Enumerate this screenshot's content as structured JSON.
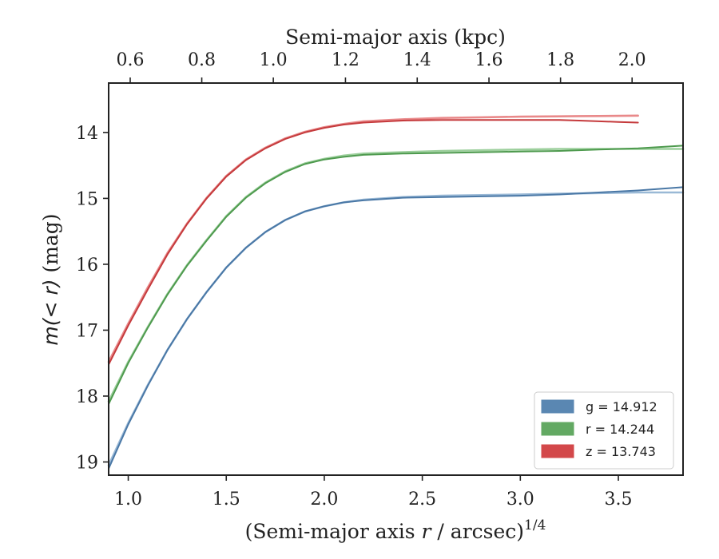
{
  "chart_data": {
    "type": "line",
    "title": "",
    "xlabel": "(Semi-major axis r / arcsec)",
    "xlabel_parts": {
      "prefix": "(Semi-major axis ",
      "variable": "r",
      "suffix": " / arcsec)",
      "exponent": "1/4"
    },
    "ylabel": "m(< r) (mag)",
    "ylabel_parts": {
      "math": "m(< r)",
      "unit": " (mag)"
    },
    "top_xlabel": "Semi-major axis (kpc)",
    "xlim": [
      0.9,
      3.83
    ],
    "ylim": [
      19.2,
      13.25
    ],
    "y_inverted": true,
    "grid": false,
    "x_ticks": [
      1.0,
      1.5,
      2.0,
      2.5,
      3.0,
      3.5
    ],
    "x_tick_labels": [
      "1.0",
      "1.5",
      "2.0",
      "2.5",
      "3.0",
      "3.5"
    ],
    "y_ticks": [
      14,
      15,
      16,
      17,
      18,
      19
    ],
    "y_tick_labels": [
      "14",
      "15",
      "16",
      "17",
      "18",
      "19"
    ],
    "top_ticks": [
      {
        "label": "0.6",
        "x": 1.01
      },
      {
        "label": "0.8",
        "x": 1.375
      },
      {
        "label": "1.0",
        "x": 1.74
      },
      {
        "label": "1.2",
        "x": 2.108
      },
      {
        "label": "1.4",
        "x": 2.474
      },
      {
        "label": "1.6",
        "x": 2.84
      },
      {
        "label": "1.8",
        "x": 3.205
      },
      {
        "label": "2.0",
        "x": 3.57
      }
    ],
    "legend": {
      "position": "lower-right",
      "entries": [
        {
          "label": "g = 14.912",
          "color": "#5a87b2"
        },
        {
          "label": "r = 14.244",
          "color": "#63a963"
        },
        {
          "label": "z = 13.743",
          "color": "#d3484a"
        }
      ]
    },
    "series": [
      {
        "name": "g",
        "color": "#4a78a6",
        "model_color": "#9ab9d6",
        "x": [
          0.9,
          1.0,
          1.1,
          1.2,
          1.3,
          1.4,
          1.5,
          1.6,
          1.7,
          1.8,
          1.9,
          2.0,
          2.1,
          2.2,
          2.4,
          2.6,
          2.8,
          3.0,
          3.2,
          3.4,
          3.6,
          3.83
        ],
        "y": [
          19.1,
          18.43,
          17.84,
          17.3,
          16.83,
          16.42,
          16.05,
          15.75,
          15.51,
          15.33,
          15.2,
          15.12,
          15.06,
          15.03,
          14.99,
          14.98,
          14.97,
          14.96,
          14.94,
          14.91,
          14.88,
          14.83
        ],
        "model_y": [
          19.05,
          18.41,
          17.83,
          17.3,
          16.83,
          16.42,
          16.05,
          15.75,
          15.51,
          15.33,
          15.2,
          15.12,
          15.06,
          15.02,
          14.98,
          14.96,
          14.95,
          14.94,
          14.93,
          14.92,
          14.91,
          14.91
        ]
      },
      {
        "name": "r",
        "color": "#4e9a4e",
        "model_color": "#9ccf9c",
        "x": [
          0.9,
          1.0,
          1.1,
          1.2,
          1.3,
          1.4,
          1.5,
          1.6,
          1.7,
          1.8,
          1.9,
          2.0,
          2.1,
          2.2,
          2.4,
          2.6,
          2.8,
          3.0,
          3.2,
          3.4,
          3.6,
          3.83
        ],
        "y": [
          18.12,
          17.5,
          16.96,
          16.46,
          16.02,
          15.64,
          15.28,
          14.99,
          14.77,
          14.6,
          14.48,
          14.41,
          14.37,
          14.34,
          14.32,
          14.31,
          14.3,
          14.29,
          14.28,
          14.26,
          14.24,
          14.2
        ],
        "model_y": [
          18.08,
          17.48,
          16.95,
          16.45,
          16.01,
          15.63,
          15.27,
          14.98,
          14.76,
          14.59,
          14.47,
          14.4,
          14.35,
          14.32,
          14.3,
          14.28,
          14.27,
          14.26,
          14.25,
          14.25,
          14.25,
          14.25
        ]
      },
      {
        "name": "z",
        "color": "#c53a3c",
        "model_color": "#e9898a",
        "x": [
          0.9,
          1.0,
          1.1,
          1.2,
          1.3,
          1.4,
          1.5,
          1.6,
          1.7,
          1.8,
          1.9,
          2.0,
          2.1,
          2.2,
          2.4,
          2.6,
          2.8,
          3.0,
          3.2,
          3.3,
          3.4,
          3.5,
          3.6
        ],
        "y": [
          17.52,
          16.93,
          16.38,
          15.85,
          15.39,
          15.0,
          14.67,
          14.42,
          14.24,
          14.1,
          14.0,
          13.93,
          13.88,
          13.85,
          13.82,
          13.81,
          13.81,
          13.81,
          13.81,
          13.82,
          13.83,
          13.84,
          13.85
        ],
        "model_y": [
          17.48,
          16.9,
          16.35,
          15.83,
          15.38,
          14.99,
          14.66,
          14.41,
          14.23,
          14.09,
          13.99,
          13.92,
          13.87,
          13.83,
          13.8,
          13.78,
          13.77,
          13.76,
          13.755,
          13.752,
          13.75,
          13.748,
          13.745
        ]
      }
    ]
  }
}
